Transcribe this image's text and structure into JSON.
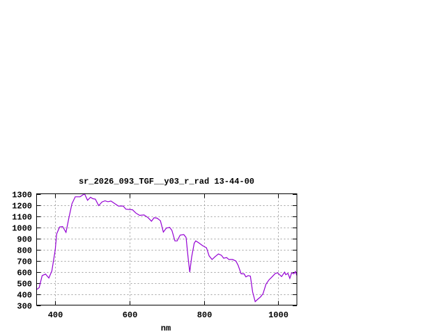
{
  "chart_data": {
    "type": "line",
    "title": "sr_2026_093_TGF__y03_r_rad 13-44-00",
    "xlabel": "nm",
    "ylabel": "",
    "xlim": [
      350,
      1050
    ],
    "ylim": [
      300,
      1300
    ],
    "xticks": [
      400,
      600,
      800,
      1000
    ],
    "yticks": [
      300,
      400,
      500,
      600,
      700,
      800,
      900,
      1000,
      1100,
      1200,
      1300
    ],
    "grid": true,
    "legend": "none",
    "colors": {
      "line": "#9400d3",
      "grid": "#a0a0a0",
      "axis": "#000000"
    },
    "series": [
      {
        "x": [
          350,
          357,
          365,
          374,
          383,
          391,
          400,
          404,
          412,
          420,
          429,
          437,
          445,
          454,
          467,
          479,
          487,
          495,
          501,
          508,
          517,
          526,
          534,
          542,
          550,
          561,
          570,
          583,
          590,
          608,
          617,
          627,
          639,
          650,
          659,
          666,
          674,
          683,
          691,
          699,
          708,
          714,
          722,
          728,
          736,
          746,
          752,
          758,
          762,
          767,
          774,
          778,
          786,
          796,
          807,
          814,
          822,
          830,
          839,
          847,
          853,
          861,
          867,
          877,
          886,
          892,
          900,
          908,
          913,
          919,
          925,
          931,
          938,
          946,
          952,
          959,
          967,
          975,
          983,
          992,
          998,
          1009,
          1017,
          1020,
          1026,
          1031,
          1036,
          1042,
          1046,
          1050
        ],
        "y": [
          440,
          457,
          565,
          579,
          544,
          606,
          794,
          940,
          1002,
          1006,
          954,
          1085,
          1210,
          1273,
          1273,
          1300,
          1242,
          1269,
          1256,
          1252,
          1194,
          1227,
          1237,
          1229,
          1235,
          1210,
          1190,
          1190,
          1162,
          1156,
          1127,
          1106,
          1110,
          1085,
          1054,
          1085,
          1081,
          1058,
          956,
          992,
          998,
          971,
          877,
          877,
          929,
          933,
          908,
          710,
          596,
          731,
          856,
          877,
          860,
          835,
          815,
          742,
          710,
          735,
          760,
          748,
          721,
          727,
          710,
          710,
          696,
          658,
          581,
          581,
          554,
          565,
          560,
          419,
          331,
          356,
          373,
          402,
          488,
          527,
          554,
          585,
          590,
          556,
          596,
          573,
          585,
          540,
          590,
          581,
          602,
          565
        ]
      }
    ]
  }
}
